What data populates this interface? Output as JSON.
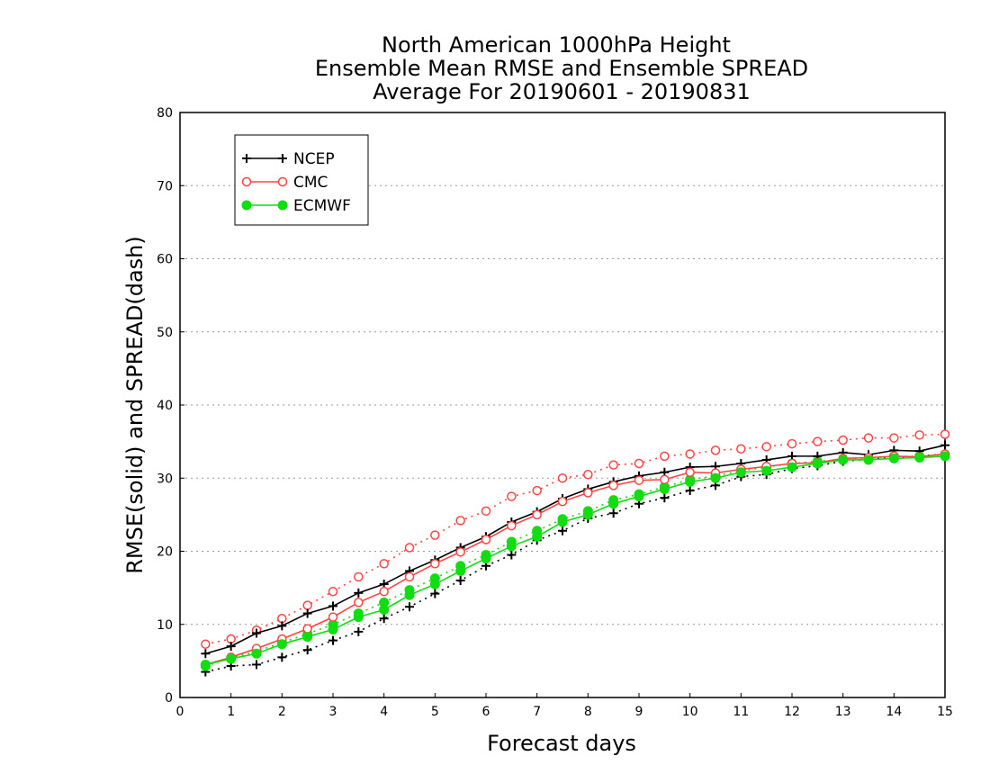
{
  "chart_data": {
    "type": "line",
    "title": [
      "North American 1000hPa Height",
      "Ensemble Mean RMSE and Ensemble SPREAD",
      "Average For 20190601 - 20190831"
    ],
    "xlabel": "Forecast days",
    "ylabel": "RMSE(solid) and SPREAD(dash)",
    "xlim": [
      0,
      15
    ],
    "ylim": [
      0,
      80
    ],
    "xticks": [
      "0",
      "1",
      "2",
      "3",
      "4",
      "5",
      "6",
      "7",
      "8",
      "9",
      "10",
      "11",
      "12",
      "13",
      "14",
      "15"
    ],
    "yticks": [
      "0",
      "10",
      "20",
      "30",
      "40",
      "50",
      "60",
      "70",
      "80"
    ],
    "grid": "horizontal dotted",
    "legend_position": "top-left",
    "x": [
      0.5,
      1,
      1.5,
      2,
      2.5,
      3,
      3.5,
      4,
      4.5,
      5,
      5.5,
      6,
      6.5,
      7,
      7.5,
      8,
      8.5,
      9,
      9.5,
      10,
      10.5,
      11,
      11.5,
      12,
      12.5,
      13,
      13.5,
      14,
      14.5,
      15
    ],
    "series": [
      {
        "name": "NCEP",
        "color": "#000000",
        "marker": "plus",
        "kind": "rmse",
        "values": [
          6.0,
          7.0,
          8.8,
          9.8,
          11.5,
          12.5,
          14.3,
          15.5,
          17.3,
          18.8,
          20.5,
          22.0,
          24.0,
          25.4,
          27.2,
          28.5,
          29.5,
          30.3,
          30.8,
          31.5,
          31.6,
          32.0,
          32.5,
          33.0,
          33.0,
          33.5,
          33.2,
          33.8,
          33.7,
          34.5
        ]
      },
      {
        "name": "NCEP",
        "color": "#000000",
        "marker": "plus",
        "kind": "spread",
        "values": [
          3.5,
          4.3,
          4.5,
          5.5,
          6.5,
          7.8,
          9.0,
          10.8,
          12.4,
          14.2,
          16.0,
          18.0,
          19.5,
          21.5,
          22.8,
          24.5,
          25.2,
          26.5,
          27.3,
          28.3,
          29.0,
          30.2,
          30.5,
          31.3,
          31.7,
          32.3,
          32.6,
          32.8,
          33.0,
          33.3
        ]
      },
      {
        "name": "CMC",
        "color": "#ff4444",
        "marker": "open-circle",
        "kind": "rmse",
        "values": [
          4.5,
          5.5,
          6.7,
          8.0,
          9.4,
          11.0,
          13.0,
          14.5,
          16.5,
          18.3,
          19.9,
          21.6,
          23.5,
          25.0,
          26.8,
          28.0,
          29.0,
          29.7,
          29.8,
          30.8,
          30.7,
          31.2,
          31.6,
          32.0,
          32.1,
          32.7,
          32.8,
          33.0,
          32.9,
          33.3
        ]
      },
      {
        "name": "CMC",
        "color": "#ff4444",
        "marker": "open-circle",
        "kind": "spread",
        "values": [
          7.3,
          8.0,
          9.2,
          10.8,
          12.6,
          14.5,
          16.5,
          18.3,
          20.5,
          22.2,
          24.2,
          25.5,
          27.5,
          28.3,
          30.0,
          30.5,
          31.8,
          32.0,
          33.0,
          33.3,
          33.8,
          34.0,
          34.3,
          34.7,
          35.0,
          35.2,
          35.5,
          35.5,
          35.9,
          36.0
        ]
      },
      {
        "name": "ECMWF",
        "color": "#11dd11",
        "marker": "filled-circle",
        "kind": "rmse",
        "values": [
          4.5,
          5.3,
          6.0,
          7.3,
          8.3,
          9.3,
          11.0,
          12.0,
          14.0,
          15.5,
          17.3,
          19.0,
          20.7,
          22.0,
          24.0,
          25.0,
          26.5,
          27.5,
          28.5,
          29.5,
          30.0,
          30.8,
          31.0,
          31.5,
          32.0,
          32.5,
          32.5,
          32.7,
          32.8,
          33.0
        ]
      },
      {
        "name": "ECMWF",
        "color": "#11dd11",
        "marker": "filled-circle",
        "kind": "spread",
        "values": [
          4.3,
          5.4,
          6.3,
          7.5,
          8.7,
          10.0,
          11.5,
          13.0,
          14.7,
          16.3,
          18.0,
          19.5,
          21.3,
          22.8,
          24.4,
          25.5,
          27.0,
          27.8,
          28.8,
          29.8,
          30.3,
          31.0,
          31.5,
          32.0,
          32.3,
          32.5,
          32.7,
          33.0,
          33.0,
          33.2
        ]
      }
    ]
  }
}
